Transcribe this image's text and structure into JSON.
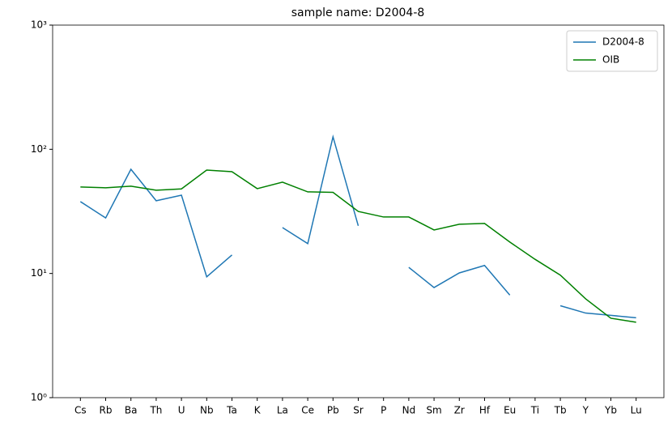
{
  "chart_data": {
    "type": "line",
    "title": "sample name: D2004-8",
    "categories": [
      "Cs",
      "Rb",
      "Ba",
      "Th",
      "U",
      "Nb",
      "Ta",
      "K",
      "La",
      "Ce",
      "Pb",
      "Sr",
      "P",
      "Nd",
      "Sm",
      "Zr",
      "Hf",
      "Eu",
      "Ti",
      "Tb",
      "Y",
      "Yb",
      "Lu"
    ],
    "series": [
      {
        "name": "D2004-8",
        "color": "#1f77b4",
        "values": [
          37.9,
          28,
          69,
          38.5,
          42.7,
          9.4,
          14.1,
          null,
          23.4,
          17.4,
          126,
          24.2,
          null,
          11.2,
          7.7,
          10.1,
          11.6,
          6.7,
          null,
          5.5,
          4.8,
          4.6,
          4.4
        ]
      },
      {
        "name": "OIB",
        "color": "#008000",
        "values": [
          49.7,
          49,
          50.5,
          46.8,
          48,
          68,
          66,
          48.2,
          54.4,
          45.4,
          45,
          31.6,
          28.5,
          28.5,
          22.4,
          24.9,
          25.3,
          17.9,
          13,
          9.7,
          6.25,
          4.36,
          4.05
        ]
      }
    ],
    "ylim": [
      1,
      1000
    ],
    "log_y": true,
    "yticks": [
      {
        "value": 1,
        "label": "10⁰"
      },
      {
        "value": 10,
        "label": "10¹"
      },
      {
        "value": 100,
        "label": "10²"
      },
      {
        "value": 1000,
        "label": "10³"
      }
    ],
    "legend": "upper right"
  }
}
